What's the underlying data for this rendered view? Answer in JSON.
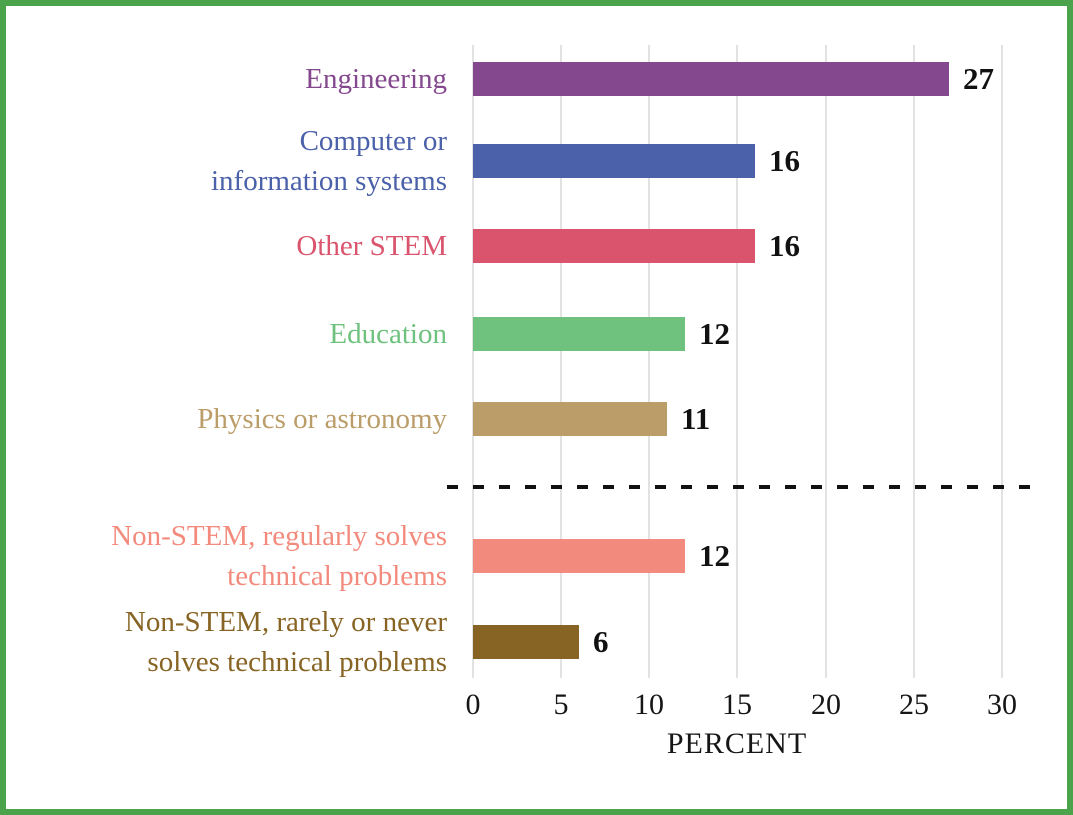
{
  "frame": {
    "border_color": "#4ba44b",
    "background_color": "#ffffff"
  },
  "chart_data": {
    "type": "bar",
    "orientation": "horizontal",
    "title": "",
    "xlabel": "PERCENT",
    "ylabel": "",
    "x_ticks": [
      0,
      5,
      10,
      15,
      20,
      25,
      30
    ],
    "xlim": [
      0,
      32
    ],
    "grid": "vertical-gridlines-on",
    "legend": "none",
    "value_labels": "end-of-bar-bold-black",
    "separator": {
      "style": "black-dashed-horizontal-line",
      "after_category_index": 4,
      "meaning": "divides STEM occupations from non-STEM occupations"
    },
    "categories": [
      "Engineering",
      "Computer or information systems",
      "Other STEM",
      "Education",
      "Physics or astronomy",
      "Non-STEM, regularly solves technical problems",
      "Non-STEM, rarely or never solves technical problems"
    ],
    "values": [
      27,
      16,
      16,
      12,
      11,
      12,
      6
    ],
    "series": [
      {
        "label_lines": [
          "Engineering"
        ],
        "value": 27,
        "color": "#84488e"
      },
      {
        "label_lines": [
          "Computer or",
          "information systems"
        ],
        "value": 16,
        "color": "#4b61aa"
      },
      {
        "label_lines": [
          "Other STEM"
        ],
        "value": 16,
        "color": "#d9546c"
      },
      {
        "label_lines": [
          "Education"
        ],
        "value": 12,
        "color": "#6fc17e"
      },
      {
        "label_lines": [
          "Physics or astronomy"
        ],
        "value": 11,
        "color": "#bb9d69"
      },
      {
        "label_lines": [
          "Non-STEM, regularly solves",
          "technical problems"
        ],
        "value": 12,
        "color": "#f28b7d"
      },
      {
        "label_lines": [
          "Non-STEM, rarely or never",
          "solves technical problems"
        ],
        "value": 6,
        "color": "#876424"
      }
    ]
  }
}
